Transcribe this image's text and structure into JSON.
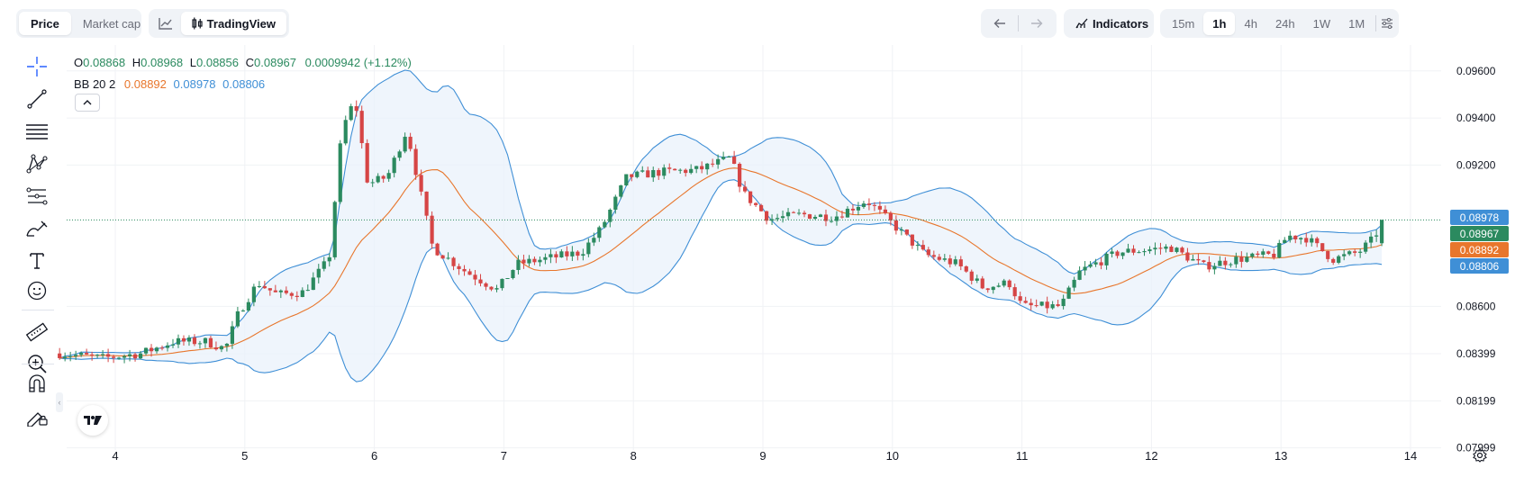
{
  "toolbar": {
    "price_label": "Price",
    "market_cap_label": "Market cap",
    "tradingview_label": "TradingView",
    "indicators_label": "Indicators",
    "timeframes": [
      "15m",
      "1h",
      "4h",
      "24h",
      "1W",
      "1M"
    ],
    "active_timeframe": "1h"
  },
  "legend": {
    "o_label": "O",
    "o_value": "0.08868",
    "h_label": "H",
    "h_value": "0.08968",
    "l_label": "L",
    "l_value": "0.08856",
    "c_label": "C",
    "c_value": "0.08967",
    "change": "0.0009942 (+1.12%)",
    "bb_label": "BB 20 2",
    "bb_middle": "0.08892",
    "bb_upper": "0.08978",
    "bb_lower": "0.08806"
  },
  "price_labels": {
    "upper": "0.08978",
    "close": "0.08967",
    "middle": "0.08892",
    "lower": "0.08806"
  },
  "colors": {
    "up": "#2b8a5f",
    "down": "#d64545",
    "bb_middle": "#e8762c",
    "bb_band": "#3f8fd6",
    "bb_fill": "#eaf2fb",
    "upper_label_bg": "#3f8fd6",
    "close_label_bg": "#2b8a5f",
    "middle_label_bg": "#e8762c",
    "lower_label_bg": "#3f8fd6"
  },
  "chart_data": {
    "type": "candlestick",
    "x_tick_labels": [
      "4",
      "5",
      "6",
      "7",
      "8",
      "9",
      "10",
      "11",
      "12",
      "13",
      "14"
    ],
    "x_tick_days": [
      4,
      5,
      6,
      7,
      8,
      9,
      10,
      11,
      12,
      13,
      14
    ],
    "y_tick_labels": [
      "0.09600",
      "0.09400",
      "0.09200",
      "0.08600",
      "0.08399",
      "0.08199",
      "0.07999"
    ],
    "y_tick_values": [
      0.096,
      0.094,
      0.092,
      0.086,
      0.08399,
      0.08199,
      0.07999
    ],
    "ylim": [
      0.0799,
      0.0971
    ],
    "xlim": [
      3.57,
      14.0
    ],
    "current_close": 0.08967,
    "keyframes": [
      [
        3.57,
        0.084
      ],
      [
        3.9,
        0.0838
      ],
      [
        4.2,
        0.084
      ],
      [
        4.45,
        0.0845
      ],
      [
        4.7,
        0.0845
      ],
      [
        4.85,
        0.0842
      ],
      [
        4.95,
        0.0857
      ],
      [
        5.1,
        0.087
      ],
      [
        5.25,
        0.0865
      ],
      [
        5.45,
        0.0866
      ],
      [
        5.65,
        0.088
      ],
      [
        5.75,
        0.0935
      ],
      [
        5.85,
        0.0948
      ],
      [
        5.95,
        0.0912
      ],
      [
        6.1,
        0.0915
      ],
      [
        6.25,
        0.0935
      ],
      [
        6.45,
        0.0885
      ],
      [
        6.7,
        0.0875
      ],
      [
        6.95,
        0.0867
      ],
      [
        7.1,
        0.0878
      ],
      [
        7.3,
        0.088
      ],
      [
        7.6,
        0.0883
      ],
      [
        7.75,
        0.0893
      ],
      [
        7.95,
        0.0915
      ],
      [
        8.2,
        0.0917
      ],
      [
        8.5,
        0.0918
      ],
      [
        8.75,
        0.0923
      ],
      [
        8.85,
        0.0908
      ],
      [
        9.05,
        0.0897
      ],
      [
        9.3,
        0.0899
      ],
      [
        9.55,
        0.0898
      ],
      [
        9.8,
        0.0905
      ],
      [
        10.0,
        0.0895
      ],
      [
        10.25,
        0.0882
      ],
      [
        10.5,
        0.0878
      ],
      [
        10.7,
        0.0868
      ],
      [
        10.9,
        0.087
      ],
      [
        11.0,
        0.086
      ],
      [
        11.3,
        0.086
      ],
      [
        11.45,
        0.0875
      ],
      [
        11.75,
        0.0883
      ],
      [
        11.95,
        0.0884
      ],
      [
        12.15,
        0.0885
      ],
      [
        12.4,
        0.0877
      ],
      [
        12.65,
        0.088
      ],
      [
        12.95,
        0.0882
      ],
      [
        13.05,
        0.089
      ],
      [
        13.2,
        0.0889
      ],
      [
        13.4,
        0.088
      ],
      [
        13.6,
        0.0883
      ],
      [
        13.7,
        0.0888
      ],
      [
        13.8,
        0.08967
      ]
    ],
    "indicator": {
      "name": "BB",
      "length": 20,
      "mult": 2,
      "last_middle": 0.08892,
      "last_upper": 0.08978,
      "last_lower": 0.08806
    }
  }
}
